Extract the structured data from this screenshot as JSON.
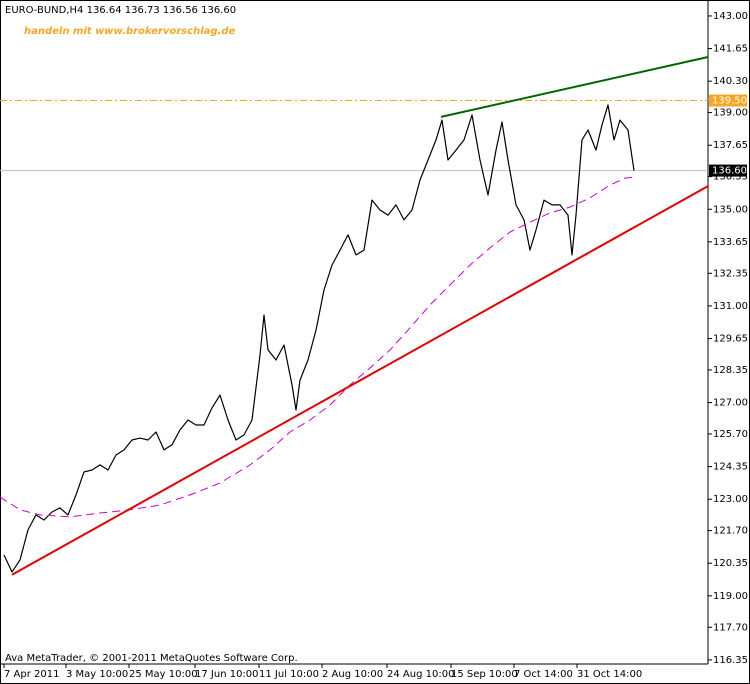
{
  "chart_data": {
    "type": "line",
    "title": "EURO-BUND,H4  136.64 136.73 136.56 136.60",
    "subtitle": "handeln mit www.brokervorschlag.de",
    "footer": "Ava MetaTrader, © 2001-2011 MetaQuotes Software Corp.",
    "xlim": [
      0,
      708
    ],
    "ylim": [
      116.18,
      143.66
    ],
    "xticks": [
      {
        "value": 4,
        "label": "7 Apr 2011"
      },
      {
        "value": 66,
        "label": "3 May 10:00"
      },
      {
        "value": 129,
        "label": "25 May 10:00"
      },
      {
        "value": 195,
        "label": "17 Jun 10:00"
      },
      {
        "value": 259,
        "label": "11 Jul 10:00"
      },
      {
        "value": 322,
        "label": "2 Aug 10:00"
      },
      {
        "value": 387,
        "label": "24 Aug 10:00"
      },
      {
        "value": 451,
        "label": "15 Sep 10:00"
      },
      {
        "value": 514,
        "label": "7 Oct 14:00"
      },
      {
        "value": 577,
        "label": "31 Oct 14:00"
      }
    ],
    "yticks": [
      {
        "value": 143,
        "label": "143.00"
      },
      141.65,
      {
        "value": 140.3,
        "label": "140.30"
      },
      {
        "value": 139,
        "label": "139.00"
      },
      137.65,
      136.35,
      {
        "value": 135,
        "label": "135.00"
      },
      133.65,
      132.35,
      {
        "value": 131,
        "label": "131.00"
      },
      129.65,
      128.35,
      {
        "value": 127,
        "label": "127.00"
      },
      {
        "value": 125.7,
        "label": "125.70"
      },
      124.35,
      {
        "value": 123,
        "label": "123.00"
      },
      {
        "value": 121.7,
        "label": "121.70"
      },
      120.35,
      {
        "value": 119,
        "label": "119.00"
      },
      {
        "value": 117.7,
        "label": "117.70"
      },
      116.35
    ],
    "grid": false,
    "series": [
      {
        "color": "#000000",
        "style": "solid",
        "width": 1.2,
        "x": [
          4,
          12,
          20,
          28,
          36,
          44,
          52,
          60,
          68,
          76,
          84,
          92,
          100,
          108,
          116,
          124,
          132,
          140,
          148,
          156,
          164,
          172,
          180,
          188,
          196,
          204,
          212,
          220,
          228,
          236,
          244,
          252,
          260,
          264,
          268,
          276,
          284,
          292,
          296,
          300,
          308,
          316,
          324,
          332,
          340,
          348,
          356,
          364,
          372,
          380,
          388,
          396,
          404,
          412,
          420,
          428,
          436,
          442,
          448,
          456,
          464,
          472,
          480,
          488,
          496,
          502,
          508,
          516,
          524,
          530,
          536,
          544,
          552,
          560,
          568,
          572,
          576,
          582,
          588,
          596,
          602,
          608,
          614,
          620,
          628,
          634
        ],
        "values": [
          120.69,
          119.99,
          120.49,
          121.73,
          122.35,
          122.14,
          122.47,
          122.64,
          122.35,
          123.18,
          124.13,
          124.21,
          124.42,
          124.21,
          124.83,
          125.04,
          125.45,
          125.53,
          125.45,
          125.78,
          125.04,
          125.25,
          125.87,
          126.28,
          126.07,
          126.07,
          126.78,
          127.31,
          126.28,
          125.45,
          125.66,
          126.28,
          128.97,
          130.62,
          129.18,
          128.76,
          129.38,
          127.73,
          126.69,
          127.93,
          128.76,
          130.0,
          131.66,
          132.69,
          133.31,
          133.94,
          133.11,
          133.31,
          135.38,
          134.97,
          134.76,
          135.18,
          134.56,
          134.97,
          136.21,
          137.04,
          137.87,
          138.69,
          137.04,
          137.45,
          137.87,
          138.9,
          137.04,
          135.59,
          137.45,
          138.61,
          137.04,
          135.18,
          134.56,
          133.31,
          134.14,
          135.38,
          135.18,
          135.18,
          134.76,
          133.11,
          134.76,
          137.87,
          138.28,
          137.45,
          138.49,
          139.32,
          137.87,
          138.69,
          138.28,
          136.6
        ]
      },
      {
        "color": "#cc00cc",
        "style": "dashed",
        "width": 1,
        "x": [
          0,
          20,
          40,
          70,
          100,
          130,
          160,
          190,
          220,
          250,
          270,
          290,
          310,
          330,
          350,
          370,
          390,
          410,
          430,
          450,
          470,
          490,
          510,
          530,
          550,
          570,
          590,
          610,
          625,
          635
        ],
        "values": [
          123.09,
          122.56,
          122.35,
          122.27,
          122.43,
          122.56,
          122.76,
          123.18,
          123.67,
          124.42,
          125.04,
          125.78,
          126.28,
          126.9,
          127.73,
          128.43,
          129.18,
          130.09,
          131.04,
          131.87,
          132.69,
          133.4,
          134.06,
          134.47,
          134.85,
          135.09,
          135.47,
          136.0,
          136.29,
          136.34
        ]
      },
      {
        "color": "#e00000",
        "style": "solid",
        "width": 2,
        "x": [
          12,
          708
        ],
        "values": [
          119.87,
          135.96
        ]
      },
      {
        "color": "#006400",
        "style": "solid",
        "width": 2,
        "x": [
          441,
          708
        ],
        "values": [
          138.82,
          141.3
        ]
      }
    ],
    "levels": [
      {
        "value": 139.5,
        "label": "139.50",
        "color": "#f5a623",
        "style": "dash-dot"
      },
      {
        "value": 136.6,
        "label": "136.60",
        "color": "#c0c0c0",
        "style": "solid"
      }
    ]
  }
}
